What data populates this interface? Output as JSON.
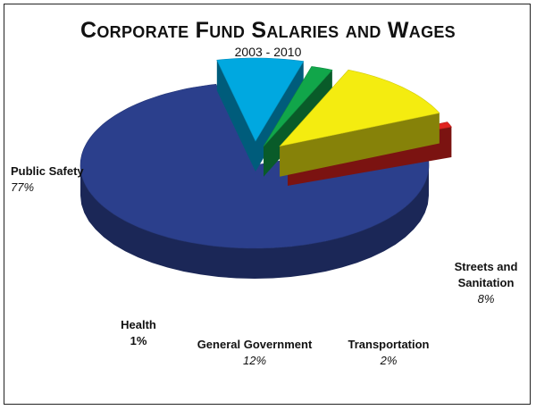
{
  "chart_data": {
    "type": "pie",
    "title": "Corporate Fund Salaries and Wages",
    "subtitle": "2003 - 2010",
    "slices": [
      {
        "label": "Public Safety",
        "value_label": "77%",
        "value": 77,
        "color": "#2b3f8c"
      },
      {
        "label": "Streets and Sanitation",
        "value_label": "8%",
        "value": 8,
        "color": "#00a8e0"
      },
      {
        "label": "Transportation",
        "value_label": "2%",
        "value": 2,
        "color": "#11a64a"
      },
      {
        "label": "General Government",
        "value_label": "12%",
        "value": 12,
        "color": "#f4ec10"
      },
      {
        "label": "Health",
        "value_label": "1%",
        "value": 1,
        "color": "#e0231f"
      }
    ]
  }
}
